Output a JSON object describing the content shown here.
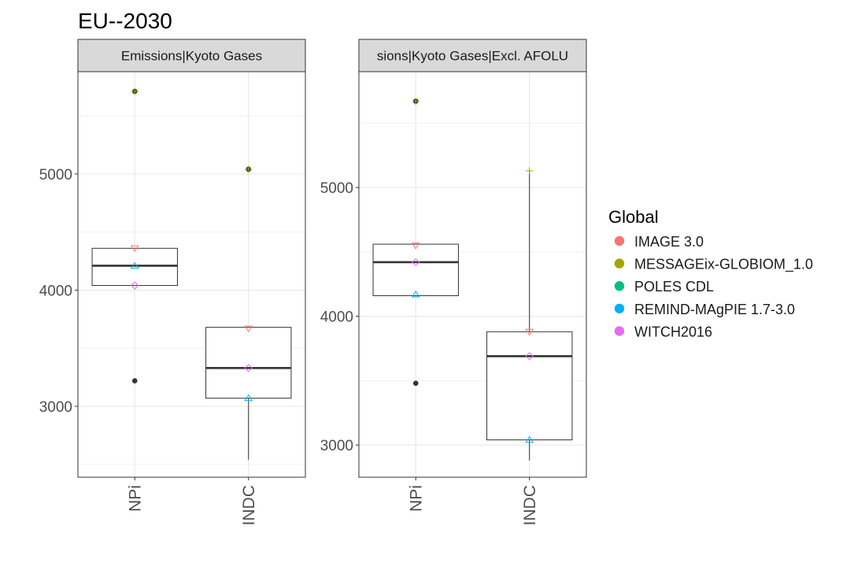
{
  "chart_data": {
    "type": "boxplot",
    "title": "EU--2030",
    "categories": [
      "NPi",
      "INDC"
    ],
    "grid": true,
    "legend": {
      "title": "Global",
      "position": "right",
      "entries": [
        {
          "name": "IMAGE 3.0",
          "color": "#F8766D",
          "shape": "triangle-down"
        },
        {
          "name": "MESSAGEix-GLOBIOM_1.0",
          "color": "#A3A500",
          "shape": "plus"
        },
        {
          "name": "POLES CDL",
          "color": "#00BF7D",
          "shape": "square"
        },
        {
          "name": "REMIND-MAgPIE 1.7-3.0",
          "color": "#00B0F6",
          "shape": "triangle-up"
        },
        {
          "name": "WITCH2016",
          "color": "#E76BF3",
          "shape": "diamond"
        }
      ]
    },
    "panels": [
      {
        "strip": "Emissions|Kyoto Gases",
        "ylim": [
          2390,
          5880
        ],
        "yticks": [
          3000,
          4000,
          5000
        ],
        "boxes": [
          {
            "category": "NPi",
            "whisker_low": 4040,
            "q1": 4040,
            "median": 4210,
            "q3": 4360,
            "whisker_high": 4360,
            "outliers": [
              5710,
              3220
            ]
          },
          {
            "category": "INDC",
            "whisker_low": 2540,
            "q1": 3070,
            "median": 3330,
            "q3": 3680,
            "whisker_high": 3680,
            "outliers": [
              5040
            ]
          }
        ],
        "points": [
          {
            "category": "NPi",
            "model": "IMAGE 3.0",
            "value": 4360
          },
          {
            "category": "NPi",
            "model": "MESSAGEix-GLOBIOM_1.0",
            "value": 5710
          },
          {
            "category": "NPi",
            "model": "REMIND-MAgPIE 1.7-3.0",
            "value": 4210
          },
          {
            "category": "NPi",
            "model": "WITCH2016",
            "value": 4040
          },
          {
            "category": "INDC",
            "model": "IMAGE 3.0",
            "value": 3670
          },
          {
            "category": "INDC",
            "model": "MESSAGEix-GLOBIOM_1.0",
            "value": 5040
          },
          {
            "category": "INDC",
            "model": "REMIND-MAgPIE 1.7-3.0",
            "value": 3070
          },
          {
            "category": "INDC",
            "model": "WITCH2016",
            "value": 3330
          }
        ]
      },
      {
        "strip": "sions|Kyoto Gases|Excl. AFOLU",
        "ylim": [
          2750,
          5900
        ],
        "yticks": [
          3000,
          4000,
          5000
        ],
        "boxes": [
          {
            "category": "NPi",
            "whisker_low": 4160,
            "q1": 4160,
            "median": 4420,
            "q3": 4560,
            "whisker_high": 4560,
            "outliers": [
              5670,
              3480
            ]
          },
          {
            "category": "INDC",
            "whisker_low": 2880,
            "q1": 3040,
            "median": 3690,
            "q3": 3880,
            "whisker_high": 5130,
            "outliers": []
          }
        ],
        "points": [
          {
            "category": "NPi",
            "model": "IMAGE 3.0",
            "value": 4550
          },
          {
            "category": "NPi",
            "model": "MESSAGEix-GLOBIOM_1.0",
            "value": 5670
          },
          {
            "category": "NPi",
            "model": "REMIND-MAgPIE 1.7-3.0",
            "value": 4170
          },
          {
            "category": "NPi",
            "model": "WITCH2016",
            "value": 4420
          },
          {
            "category": "INDC",
            "model": "IMAGE 3.0",
            "value": 3880
          },
          {
            "category": "INDC",
            "model": "MESSAGEix-GLOBIOM_1.0",
            "value": 5130
          },
          {
            "category": "INDC",
            "model": "REMIND-MAgPIE 1.7-3.0",
            "value": 3040
          },
          {
            "category": "INDC",
            "model": "WITCH2016",
            "value": 3690
          }
        ]
      }
    ]
  }
}
